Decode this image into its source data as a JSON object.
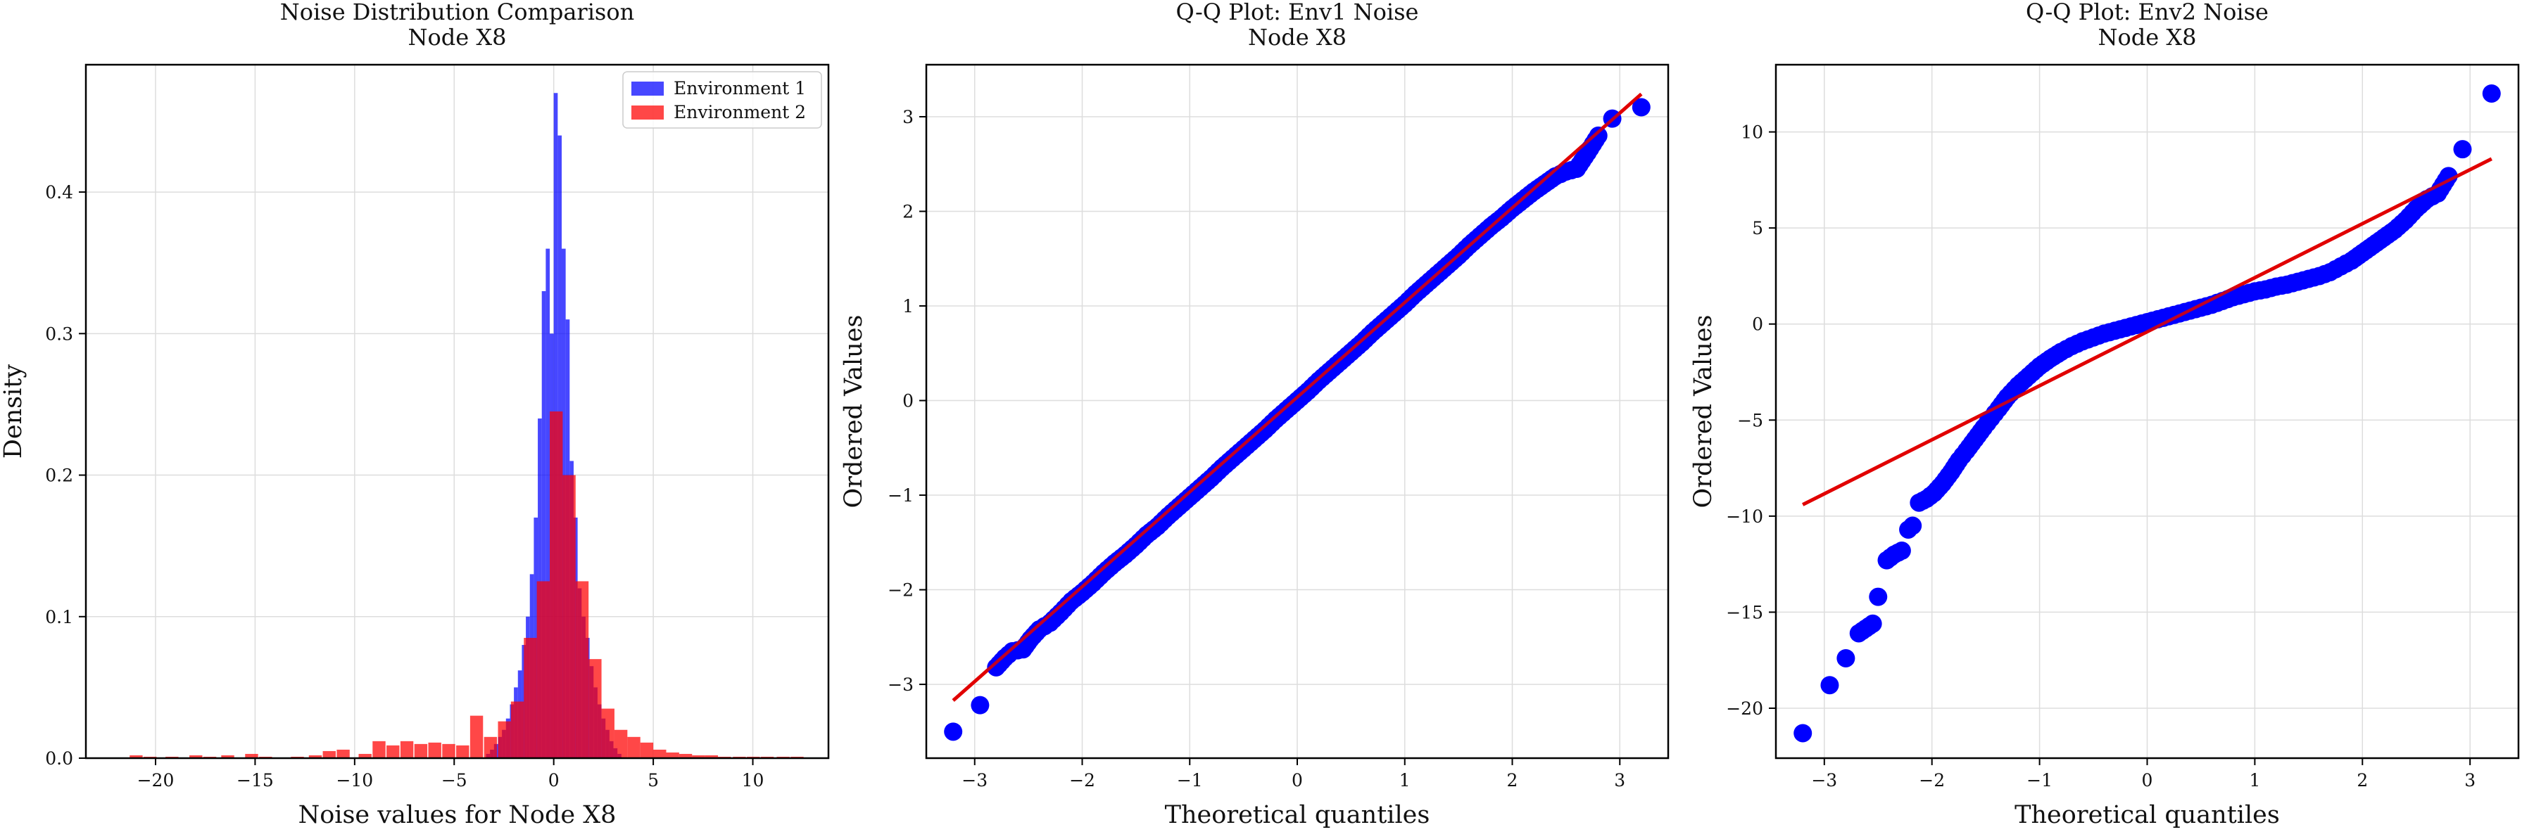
{
  "figure": {
    "background": "#ffffff",
    "colors": {
      "env1": "#0000ff",
      "env2": "#ff0000",
      "fit": "#e00000",
      "grid": "#dddddd",
      "axis": "#000000"
    }
  },
  "chart_data": [
    {
      "type": "histogram",
      "title": "Noise Distribution Comparison",
      "subtitle": "Node X8",
      "xlabel": "Noise values for Node X8",
      "ylabel": "Density",
      "xlim": [
        -23.5,
        13.8
      ],
      "ylim": [
        0,
        0.49
      ],
      "xticks": [
        -20,
        -15,
        -10,
        -5,
        0,
        5,
        10
      ],
      "yticks": [
        0.0,
        0.1,
        0.2,
        0.3,
        0.4
      ],
      "grid": true,
      "legend_position": "top-right",
      "series": [
        {
          "name": "Environment 1",
          "color": "#0000ff",
          "opacity": 0.72,
          "bin_width": 0.2,
          "bins": [
            [
              -3.4,
              0.003
            ],
            [
              -3.2,
              0.006
            ],
            [
              -3.0,
              0.01
            ],
            [
              -2.8,
              0.015
            ],
            [
              -2.6,
              0.02
            ],
            [
              -2.4,
              0.028
            ],
            [
              -2.2,
              0.038
            ],
            [
              -2.0,
              0.05
            ],
            [
              -1.8,
              0.062
            ],
            [
              -1.6,
              0.08
            ],
            [
              -1.4,
              0.1
            ],
            [
              -1.2,
              0.13
            ],
            [
              -1.0,
              0.17
            ],
            [
              -0.8,
              0.24
            ],
            [
              -0.6,
              0.33
            ],
            [
              -0.4,
              0.36
            ],
            [
              -0.2,
              0.3
            ],
            [
              0.0,
              0.47
            ],
            [
              0.2,
              0.44
            ],
            [
              0.4,
              0.36
            ],
            [
              0.6,
              0.31
            ],
            [
              0.8,
              0.21
            ],
            [
              1.0,
              0.17
            ],
            [
              1.2,
              0.12
            ],
            [
              1.4,
              0.1
            ],
            [
              1.6,
              0.085
            ],
            [
              1.8,
              0.065
            ],
            [
              2.0,
              0.05
            ],
            [
              2.2,
              0.038
            ],
            [
              2.4,
              0.028
            ],
            [
              2.6,
              0.02
            ],
            [
              2.8,
              0.012
            ],
            [
              3.0,
              0.007
            ],
            [
              3.2,
              0.003
            ]
          ]
        },
        {
          "name": "Environment 2",
          "color": "#ff0000",
          "opacity": 0.72,
          "bin_width": 0.65,
          "bins": [
            [
              -21.3,
              0.002
            ],
            [
              -20.6,
              0.001
            ],
            [
              -19.5,
              0.001
            ],
            [
              -18.3,
              0.002
            ],
            [
              -17.6,
              0.001
            ],
            [
              -16.7,
              0.002
            ],
            [
              -15.5,
              0.003
            ],
            [
              -14.8,
              0.001
            ],
            [
              -13.2,
              0.001
            ],
            [
              -12.3,
              0.002
            ],
            [
              -11.6,
              0.005
            ],
            [
              -10.9,
              0.006
            ],
            [
              -9.8,
              0.003
            ],
            [
              -9.1,
              0.012
            ],
            [
              -8.4,
              0.009
            ],
            [
              -7.7,
              0.012
            ],
            [
              -7.0,
              0.01
            ],
            [
              -6.3,
              0.011
            ],
            [
              -5.6,
              0.01
            ],
            [
              -4.9,
              0.009
            ],
            [
              -4.2,
              0.03
            ],
            [
              -3.5,
              0.015
            ],
            [
              -2.8,
              0.026
            ],
            [
              -2.15,
              0.04
            ],
            [
              -1.5,
              0.085
            ],
            [
              -0.85,
              0.125
            ],
            [
              -0.2,
              0.245
            ],
            [
              0.45,
              0.2
            ],
            [
              1.1,
              0.125
            ],
            [
              1.75,
              0.07
            ],
            [
              2.4,
              0.035
            ],
            [
              3.05,
              0.02
            ],
            [
              3.7,
              0.015
            ],
            [
              4.35,
              0.011
            ],
            [
              5.0,
              0.006
            ],
            [
              5.65,
              0.004
            ],
            [
              6.3,
              0.003
            ],
            [
              6.95,
              0.002
            ],
            [
              7.6,
              0.002
            ],
            [
              8.25,
              0.001
            ],
            [
              9.0,
              0.001
            ],
            [
              9.7,
              0.001
            ],
            [
              10.4,
              0.001
            ],
            [
              11.2,
              0.001
            ],
            [
              11.9,
              0.001
            ]
          ]
        }
      ]
    },
    {
      "type": "scatter",
      "title": "Q-Q Plot: Env1 Noise",
      "subtitle": "Node X8",
      "xlabel": "Theoretical quantiles",
      "ylabel": "Ordered Values",
      "xlim": [
        -3.45,
        3.45
      ],
      "ylim": [
        -3.78,
        3.55
      ],
      "xticks": [
        -3,
        -2,
        -1,
        0,
        1,
        2,
        3
      ],
      "yticks": [
        -3,
        -2,
        -1,
        0,
        1,
        2,
        3
      ],
      "grid": true,
      "point_color": "#0000ff",
      "fit_color": "#e00000",
      "fit_line": {
        "x": [
          -3.2,
          3.2
        ],
        "y": [
          -3.17,
          3.24
        ]
      },
      "points": [
        [
          -3.2,
          -3.5
        ],
        [
          -2.95,
          -3.22
        ],
        [
          -2.8,
          -2.82
        ],
        [
          -2.72,
          -2.72
        ],
        [
          -2.65,
          -2.65
        ],
        [
          -2.55,
          -2.63
        ],
        [
          -2.48,
          -2.52
        ],
        [
          -2.4,
          -2.42
        ],
        [
          -2.3,
          -2.35
        ],
        [
          -2.2,
          -2.24
        ],
        [
          -2.1,
          -2.12
        ],
        [
          -2.0,
          -2.03
        ],
        [
          -1.9,
          -1.93
        ],
        [
          -1.8,
          -1.82
        ],
        [
          -1.7,
          -1.72
        ],
        [
          -1.6,
          -1.63
        ],
        [
          -1.5,
          -1.53
        ],
        [
          -1.4,
          -1.42
        ],
        [
          -1.3,
          -1.33
        ],
        [
          -1.2,
          -1.22
        ],
        [
          -1.1,
          -1.12
        ],
        [
          -1.0,
          -1.02
        ],
        [
          -0.9,
          -0.92
        ],
        [
          -0.8,
          -0.82
        ],
        [
          -0.7,
          -0.71
        ],
        [
          -0.6,
          -0.61
        ],
        [
          -0.5,
          -0.51
        ],
        [
          -0.4,
          -0.41
        ],
        [
          -0.3,
          -0.31
        ],
        [
          -0.2,
          -0.2
        ],
        [
          -0.1,
          -0.1
        ],
        [
          0.0,
          0.0
        ],
        [
          0.1,
          0.1
        ],
        [
          0.2,
          0.21
        ],
        [
          0.3,
          0.31
        ],
        [
          0.4,
          0.41
        ],
        [
          0.5,
          0.51
        ],
        [
          0.6,
          0.61
        ],
        [
          0.7,
          0.72
        ],
        [
          0.8,
          0.82
        ],
        [
          0.9,
          0.92
        ],
        [
          1.0,
          1.02
        ],
        [
          1.1,
          1.13
        ],
        [
          1.2,
          1.23
        ],
        [
          1.3,
          1.33
        ],
        [
          1.4,
          1.43
        ],
        [
          1.5,
          1.53
        ],
        [
          1.6,
          1.64
        ],
        [
          1.7,
          1.74
        ],
        [
          1.8,
          1.84
        ],
        [
          1.9,
          1.93
        ],
        [
          2.0,
          2.03
        ],
        [
          2.1,
          2.12
        ],
        [
          2.2,
          2.21
        ],
        [
          2.3,
          2.29
        ],
        [
          2.4,
          2.37
        ],
        [
          2.5,
          2.42
        ],
        [
          2.6,
          2.45
        ],
        [
          2.7,
          2.62
        ],
        [
          2.8,
          2.8
        ],
        [
          2.93,
          2.98
        ],
        [
          3.2,
          3.1
        ]
      ]
    },
    {
      "type": "scatter",
      "title": "Q-Q Plot: Env2 Noise",
      "subtitle": "Node X8",
      "xlabel": "Theoretical quantiles",
      "ylabel": "Ordered Values",
      "xlim": [
        -3.45,
        3.45
      ],
      "ylim": [
        -22.6,
        13.5
      ],
      "xticks": [
        -3,
        -2,
        -1,
        0,
        1,
        2,
        3
      ],
      "yticks": [
        -20,
        -15,
        -10,
        -5,
        0,
        5,
        10
      ],
      "grid": true,
      "point_color": "#0000ff",
      "fit_color": "#e00000",
      "fit_line": {
        "x": [
          -3.2,
          3.2
        ],
        "y": [
          -9.4,
          8.6
        ]
      },
      "points": [
        [
          -3.2,
          -21.3
        ],
        [
          -2.95,
          -18.8
        ],
        [
          -2.8,
          -17.4
        ],
        [
          -2.68,
          -16.1
        ],
        [
          -2.55,
          -15.6
        ],
        [
          -2.5,
          -14.2
        ],
        [
          -2.42,
          -12.3
        ],
        [
          -2.35,
          -12.0
        ],
        [
          -2.28,
          -11.8
        ],
        [
          -2.22,
          -10.7
        ],
        [
          -2.18,
          -10.5
        ],
        [
          -2.12,
          -9.3
        ],
        [
          -2.05,
          -9.1
        ],
        [
          -1.98,
          -8.8
        ],
        [
          -1.9,
          -8.3
        ],
        [
          -1.82,
          -7.7
        ],
        [
          -1.75,
          -7.1
        ],
        [
          -1.68,
          -6.6
        ],
        [
          -1.6,
          -6.0
        ],
        [
          -1.52,
          -5.4
        ],
        [
          -1.45,
          -4.9
        ],
        [
          -1.38,
          -4.4
        ],
        [
          -1.3,
          -3.8
        ],
        [
          -1.2,
          -3.2
        ],
        [
          -1.1,
          -2.7
        ],
        [
          -1.0,
          -2.2
        ],
        [
          -0.9,
          -1.8
        ],
        [
          -0.8,
          -1.45
        ],
        [
          -0.7,
          -1.15
        ],
        [
          -0.6,
          -0.9
        ],
        [
          -0.5,
          -0.7
        ],
        [
          -0.4,
          -0.5
        ],
        [
          -0.3,
          -0.35
        ],
        [
          -0.2,
          -0.2
        ],
        [
          -0.1,
          -0.05
        ],
        [
          0.0,
          0.1
        ],
        [
          0.1,
          0.25
        ],
        [
          0.2,
          0.4
        ],
        [
          0.3,
          0.55
        ],
        [
          0.4,
          0.7
        ],
        [
          0.5,
          0.85
        ],
        [
          0.6,
          1.0
        ],
        [
          0.7,
          1.2
        ],
        [
          0.8,
          1.4
        ],
        [
          0.9,
          1.55
        ],
        [
          1.0,
          1.7
        ],
        [
          1.1,
          1.8
        ],
        [
          1.2,
          1.95
        ],
        [
          1.3,
          2.05
        ],
        [
          1.4,
          2.2
        ],
        [
          1.5,
          2.35
        ],
        [
          1.6,
          2.5
        ],
        [
          1.7,
          2.7
        ],
        [
          1.8,
          3.0
        ],
        [
          1.9,
          3.3
        ],
        [
          2.0,
          3.7
        ],
        [
          2.1,
          4.1
        ],
        [
          2.2,
          4.5
        ],
        [
          2.3,
          4.9
        ],
        [
          2.4,
          5.4
        ],
        [
          2.5,
          6.0
        ],
        [
          2.6,
          6.5
        ],
        [
          2.7,
          6.8
        ],
        [
          2.8,
          7.7
        ],
        [
          2.93,
          9.1
        ],
        [
          3.2,
          12.0
        ]
      ]
    }
  ]
}
